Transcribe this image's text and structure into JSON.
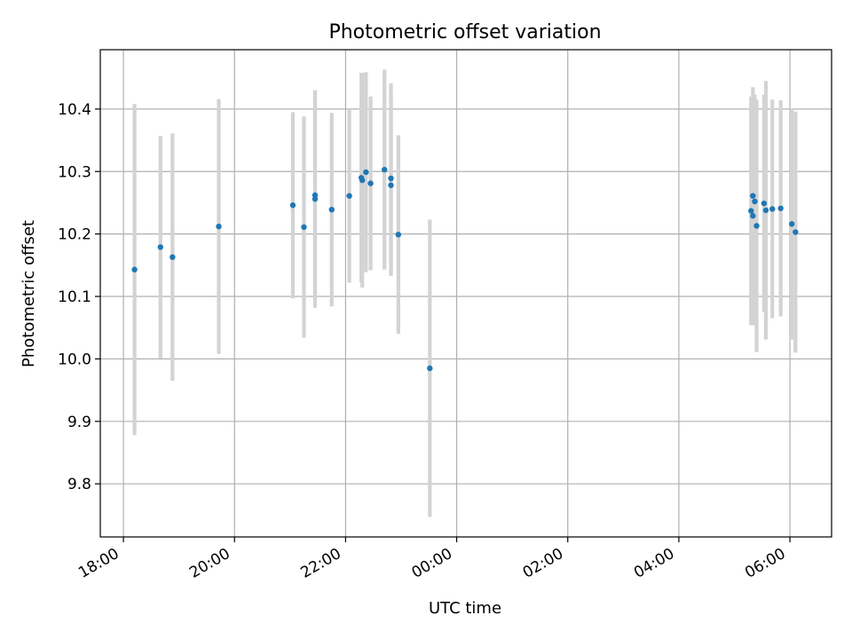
{
  "chart_data": {
    "type": "scatter",
    "title": "Photometric offset variation",
    "xlabel": "UTC time",
    "ylabel": "Photometric offset",
    "x_axis_kind": "time",
    "xlim": [
      "17:35",
      "06:45"
    ],
    "x_day_crossing": "00:00",
    "ylim": [
      9.715,
      10.495
    ],
    "grid": true,
    "x_ticks": [
      "18:00",
      "20:00",
      "22:00",
      "00:00",
      "02:00",
      "04:00",
      "06:00"
    ],
    "y_ticks": [
      9.8,
      9.9,
      10.0,
      10.1,
      10.2,
      10.3,
      10.4
    ],
    "y_tick_labels": [
      "9.8",
      "9.9",
      "10.0",
      "10.1",
      "10.2",
      "10.3",
      "10.4"
    ],
    "colors": {
      "points": "#1f77b4",
      "error_bars": "#d3d3d3",
      "grid": "#b0b0b0"
    },
    "points": [
      {
        "x": "18:12",
        "y": 10.143,
        "err": 0.265
      },
      {
        "x": "18:40",
        "y": 10.179,
        "err": 0.178
      },
      {
        "x": "18:53",
        "y": 10.163,
        "err": 0.198
      },
      {
        "x": "19:43",
        "y": 10.212,
        "err": 0.204
      },
      {
        "x": "21:03",
        "y": 10.246,
        "err": 0.149
      },
      {
        "x": "21:15",
        "y": 10.211,
        "err": 0.177
      },
      {
        "x": "21:27",
        "y": 10.262,
        "err": 0.168
      },
      {
        "x": "21:27",
        "y": 10.256,
        "err": 0.174
      },
      {
        "x": "21:45",
        "y": 10.239,
        "err": 0.155
      },
      {
        "x": "22:04",
        "y": 10.261,
        "err": 0.139
      },
      {
        "x": "22:17",
        "y": 10.29,
        "err": 0.168
      },
      {
        "x": "22:18",
        "y": 10.286,
        "err": 0.172
      },
      {
        "x": "22:22",
        "y": 10.299,
        "err": 0.16
      },
      {
        "x": "22:27",
        "y": 10.281,
        "err": 0.139
      },
      {
        "x": "22:42",
        "y": 10.303,
        "err": 0.16
      },
      {
        "x": "22:49",
        "y": 10.278,
        "err": 0.145
      },
      {
        "x": "22:49",
        "y": 10.289,
        "err": 0.152
      },
      {
        "x": "22:57",
        "y": 10.199,
        "err": 0.159
      },
      {
        "x": "23:31",
        "y": 9.985,
        "err": 0.238
      },
      {
        "x": "05:18",
        "y": 10.237,
        "err": 0.183
      },
      {
        "x": "05:20",
        "y": 10.261,
        "err": 0.174
      },
      {
        "x": "05:20",
        "y": 10.229,
        "err": 0.175
      },
      {
        "x": "05:22",
        "y": 10.252,
        "err": 0.171
      },
      {
        "x": "05:24",
        "y": 10.213,
        "err": 0.202
      },
      {
        "x": "05:32",
        "y": 10.249,
        "err": 0.174
      },
      {
        "x": "05:34",
        "y": 10.238,
        "err": 0.207
      },
      {
        "x": "05:41",
        "y": 10.24,
        "err": 0.175
      },
      {
        "x": "05:50",
        "y": 10.241,
        "err": 0.173
      },
      {
        "x": "06:02",
        "y": 10.216,
        "err": 0.185
      },
      {
        "x": "06:06",
        "y": 10.203,
        "err": 0.193
      }
    ]
  }
}
